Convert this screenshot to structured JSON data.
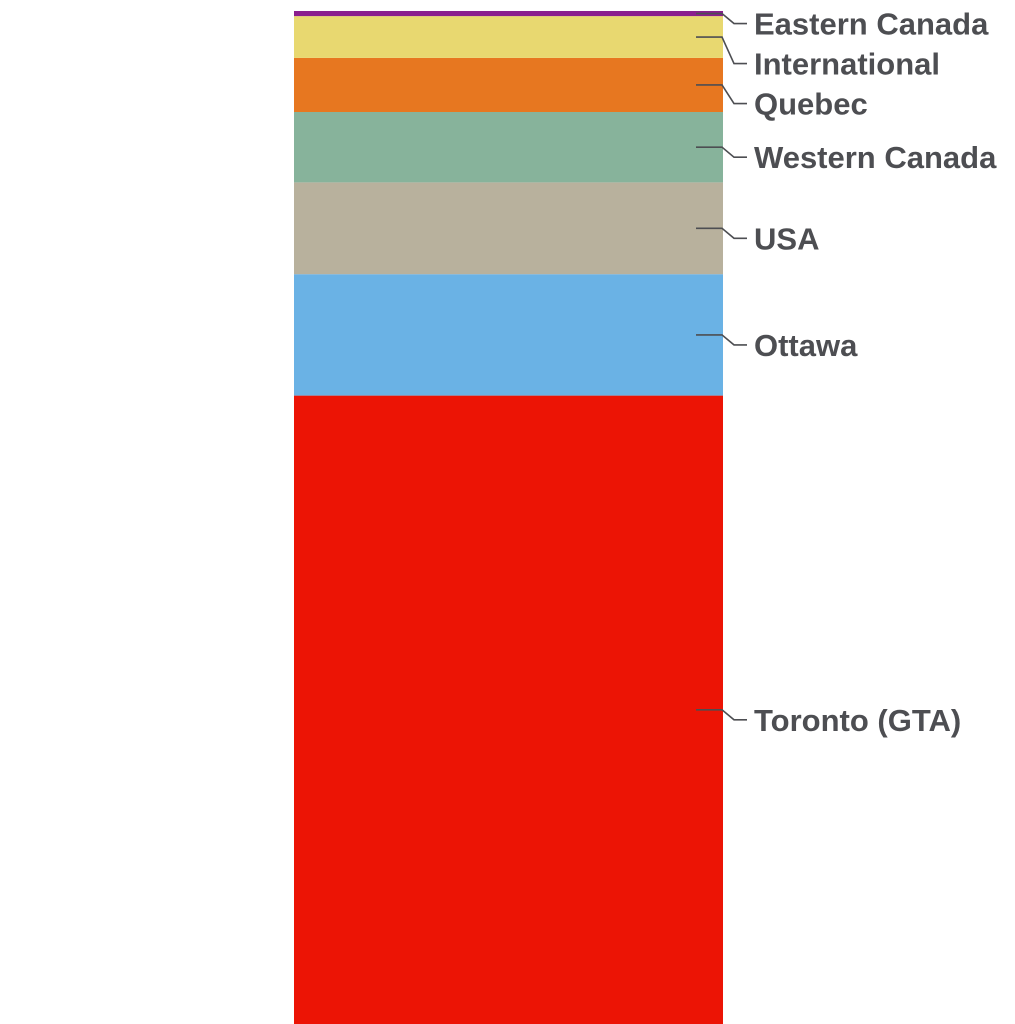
{
  "chart_data": {
    "type": "bar",
    "stacked": true,
    "orientation": "vertical",
    "title": "",
    "xlabel": "",
    "ylabel": "",
    "legend": "none",
    "grid": false,
    "segments": [
      {
        "label": "Toronto (GTA)",
        "value": 61.6,
        "color": "#ec1405"
      },
      {
        "label": "Ottawa",
        "value": 11.9,
        "color": "#6ab2e5"
      },
      {
        "label": "USA",
        "value": 9.0,
        "color": "#b8b19d"
      },
      {
        "label": "Western Canada",
        "value": 6.9,
        "color": "#87b39b"
      },
      {
        "label": "Quebec",
        "value": 5.3,
        "color": "#e77720"
      },
      {
        "label": "International",
        "value": 4.1,
        "color": "#e8d870"
      },
      {
        "label": "Eastern Canada",
        "value": 0.5,
        "color": "#8a1e8e"
      }
    ]
  }
}
